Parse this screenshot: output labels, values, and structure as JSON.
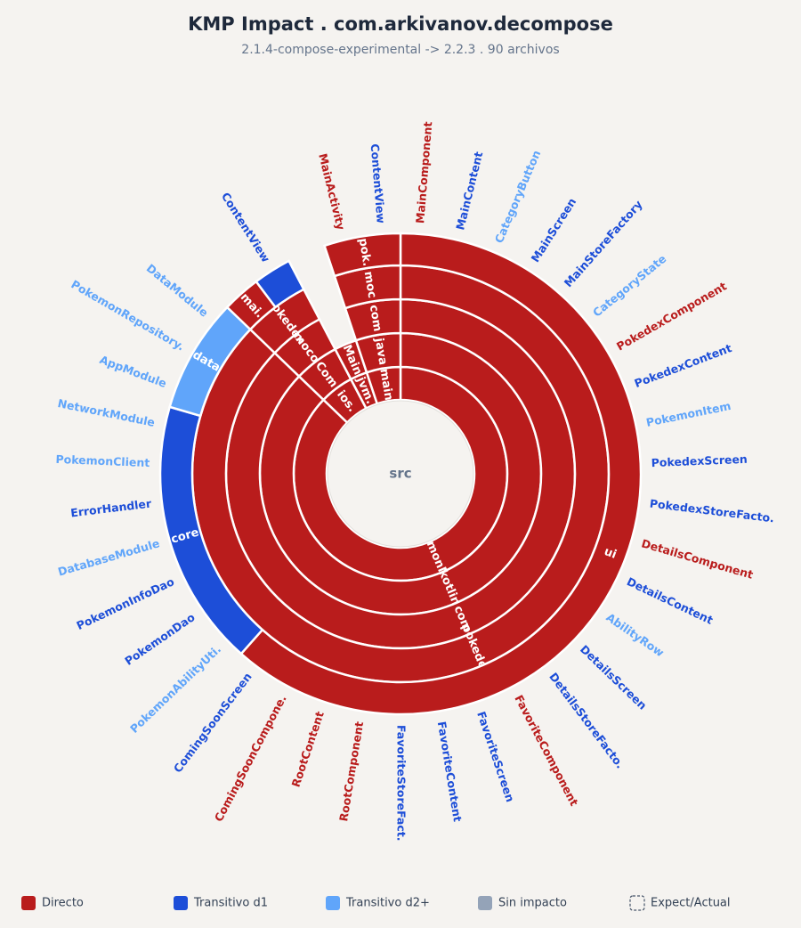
{
  "title": "KMP Impact . com.arkivanov.decompose",
  "subtitle": "2.1.4-compose-experimental -> 2.2.3 . 90 archivos",
  "tree": {
    "label": "src",
    "children": [
      {
        "label": "commonMain",
        "color": "#b91c1c",
        "children": [
          {
            "label": "kotlin",
            "color": "#b91c1c",
            "children": [
              {
                "label": "com",
                "color": "#b91c1c",
                "children": [
                  {
                    "label": "pokedex",
                    "color": "#b91c1c",
                    "children": [
                      {
                        "label": "ui",
                        "color": "#b91c1c",
                        "children": [
                          {
                            "file": "MainComponent",
                            "color": "#b91c1c"
                          },
                          {
                            "file": "MainContent",
                            "color": "#1d4ed8"
                          },
                          {
                            "file": "CategoryButton",
                            "color": "#60a5fa"
                          },
                          {
                            "file": "MainScreen",
                            "color": "#1d4ed8"
                          },
                          {
                            "file": "MainStoreFactory",
                            "color": "#1d4ed8"
                          },
                          {
                            "file": "CategoryState",
                            "color": "#60a5fa"
                          },
                          {
                            "file": "PokedexComponent",
                            "color": "#b91c1c"
                          },
                          {
                            "file": "PokedexContent",
                            "color": "#1d4ed8"
                          },
                          {
                            "file": "PokemonItem",
                            "color": "#60a5fa"
                          },
                          {
                            "file": "PokedexScreen",
                            "color": "#1d4ed8"
                          },
                          {
                            "file": "PokedexStoreFacto.",
                            "color": "#1d4ed8"
                          },
                          {
                            "file": "DetailsComponent",
                            "color": "#b91c1c"
                          },
                          {
                            "file": "DetailsContent",
                            "color": "#1d4ed8"
                          },
                          {
                            "file": "AbilityRow",
                            "color": "#60a5fa"
                          },
                          {
                            "file": "DetailsScreen",
                            "color": "#1d4ed8"
                          },
                          {
                            "file": "DetailsStoreFacto.",
                            "color": "#1d4ed8"
                          },
                          {
                            "file": "FavoriteComponent",
                            "color": "#b91c1c"
                          },
                          {
                            "file": "FavoriteScreen",
                            "color": "#1d4ed8"
                          },
                          {
                            "file": "FavoriteContent",
                            "color": "#1d4ed8"
                          },
                          {
                            "file": "FavoriteStoreFact.",
                            "color": "#1d4ed8"
                          },
                          {
                            "file": "RootComponent",
                            "color": "#b91c1c"
                          },
                          {
                            "file": "RootContent",
                            "color": "#b91c1c"
                          },
                          {
                            "file": "ComingSoonCompone.",
                            "color": "#b91c1c"
                          },
                          {
                            "file": "ComingSoonScreen",
                            "color": "#1d4ed8"
                          }
                        ]
                      },
                      {
                        "label": "core",
                        "color": "#1d4ed8",
                        "children": [
                          {
                            "file": "PokemonAbilityUti.",
                            "color": "#60a5fa"
                          },
                          {
                            "file": "PokemonDao",
                            "color": "#1d4ed8"
                          },
                          {
                            "file": "PokemonInfoDao",
                            "color": "#1d4ed8"
                          },
                          {
                            "file": "DatabaseModule",
                            "color": "#60a5fa"
                          },
                          {
                            "file": "ErrorHandler",
                            "color": "#1d4ed8"
                          },
                          {
                            "file": "PokemonClient",
                            "color": "#60a5fa"
                          },
                          {
                            "file": "NetworkModule",
                            "color": "#60a5fa"
                          }
                        ]
                      },
                      {
                        "label": "data",
                        "color": "#60a5fa",
                        "children": [
                          {
                            "file": "AppModule",
                            "color": "#60a5fa"
                          },
                          {
                            "file": "PokemonRepository.",
                            "color": "#60a5fa"
                          },
                          {
                            "file": "DataModule",
                            "color": "#60a5fa"
                          }
                        ]
                      }
                    ]
                  }
                ]
              }
            ]
          }
        ]
      },
      {
        "label": "ios.",
        "color": "#b91c1c",
        "children": [
          {
            "label": "Com",
            "color": "#b91c1c",
            "children": [
              {
                "label": "moco",
                "color": "#b91c1c",
                "children": [
                  {
                    "label": "pokedex",
                    "color": "#b91c1c",
                    "children": [
                      {
                        "label": "mai.",
                        "color": "#b91c1c"
                      },
                      {
                        "file": "ContentView",
                        "color": "#1d4ed8"
                      }
                    ]
                  }
                ]
              }
            ]
          }
        ]
      },
      {
        "label": "jvm.",
        "color": "#b91c1c",
        "children": [
          {
            "label": "Main",
            "color": "#b91c1c"
          }
        ]
      },
      {
        "label": "main",
        "color": "#b91c1c",
        "children": [
          {
            "label": "java",
            "color": "#b91c1c",
            "children": [
              {
                "label": "com",
                "color": "#b91c1c",
                "children": [
                  {
                    "label": "moc",
                    "color": "#b91c1c",
                    "children": [
                      {
                        "label": "pok.",
                        "color": "#b91c1c",
                        "children": [
                          {
                            "file": "MainActivity",
                            "color": "#b91c1c"
                          },
                          {
                            "file": "ContentView",
                            "color": "#1d4ed8"
                          }
                        ]
                      }
                    ]
                  }
                ]
              }
            ]
          }
        ]
      }
    ]
  },
  "legend": [
    {
      "label": "Directo",
      "color": "#b91c1c"
    },
    {
      "label": "Transitivo d1",
      "color": "#1d4ed8"
    },
    {
      "label": "Transitivo d2+",
      "color": "#60a5fa"
    },
    {
      "label": "Sin impacto",
      "color": "#94a3b8"
    },
    {
      "label": "Expect/Actual",
      "dashed": true
    }
  ]
}
